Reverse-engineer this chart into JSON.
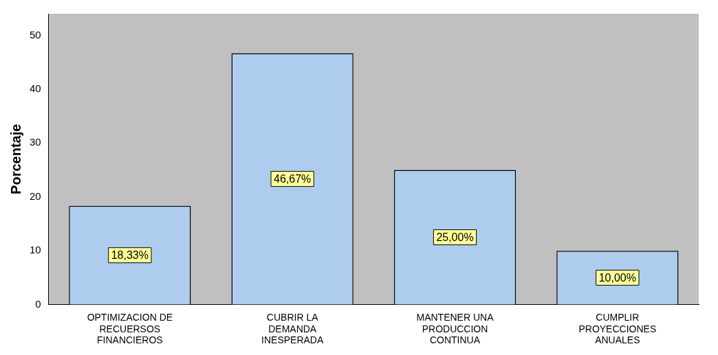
{
  "chart_data": {
    "type": "bar",
    "ylabel": "Porcentaje",
    "categories": [
      "OPTIMIZACION DE RECUERSOS FINANCIEROS",
      "CUBRIR LA DEMANDA INESPERADA",
      "MANTENER UNA PRODUCCION CONTINUA",
      "CUMPLIR PROYECCIONES ANUALES"
    ],
    "values": [
      18.33,
      46.67,
      25,
      10
    ],
    "value_labels": [
      "18,33%",
      "46,67%",
      "25,00%",
      "10,00%"
    ],
    "color": "#aecdee",
    "ylim": [
      0,
      54
    ],
    "yticks": [
      0,
      10,
      20,
      30,
      40,
      50
    ],
    "grid": false,
    "legend": false
  }
}
